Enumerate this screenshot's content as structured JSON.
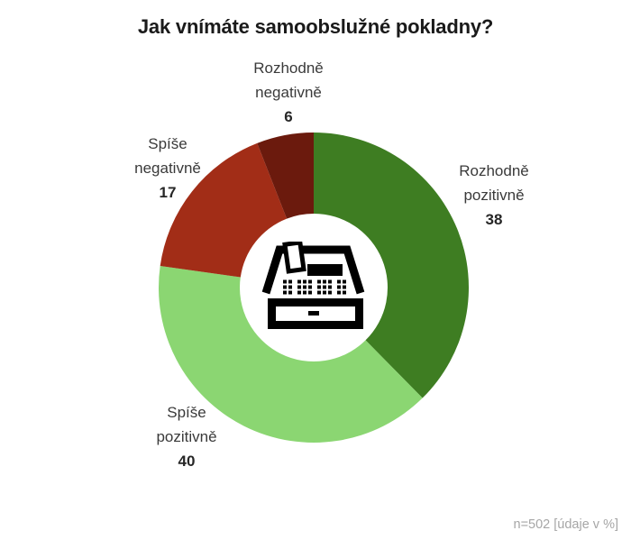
{
  "title": "Jak vnímáte samoobslužné pokladny?",
  "footer": "n=502 [údaje v %]",
  "chart_data": {
    "type": "pie",
    "subtype": "donut",
    "title": "Jak vnímáte samoobslužné pokladny?",
    "note": "n=502 [údaje v %]",
    "units": "%",
    "sample_size": 502,
    "center_icon": "cash-register",
    "direction": "clockwise",
    "start_angle_deg": 0,
    "outer_radius": 172,
    "inner_radius": 82,
    "slices": [
      {
        "id": "rozhodne-pozitivne",
        "label": "Rozhodně pozitivně",
        "label_lines": [
          "Rozhodně",
          "pozitivně"
        ],
        "value": 38,
        "color": "#3E7D22"
      },
      {
        "id": "spise-pozitivne",
        "label": "Spíše pozitivně",
        "label_lines": [
          "Spíše",
          "pozitivně"
        ],
        "value": 40,
        "color": "#8BD672"
      },
      {
        "id": "spise-negativne",
        "label": "Spíše negativně",
        "label_lines": [
          "Spíše",
          "negativně"
        ],
        "value": 17,
        "color": "#A22D17"
      },
      {
        "id": "rozhodne-negativne",
        "label": "Rozhodně negativně",
        "label_lines": [
          "Rozhodně",
          "negativně"
        ],
        "value": 6,
        "color": "#6B1A0D"
      }
    ]
  }
}
